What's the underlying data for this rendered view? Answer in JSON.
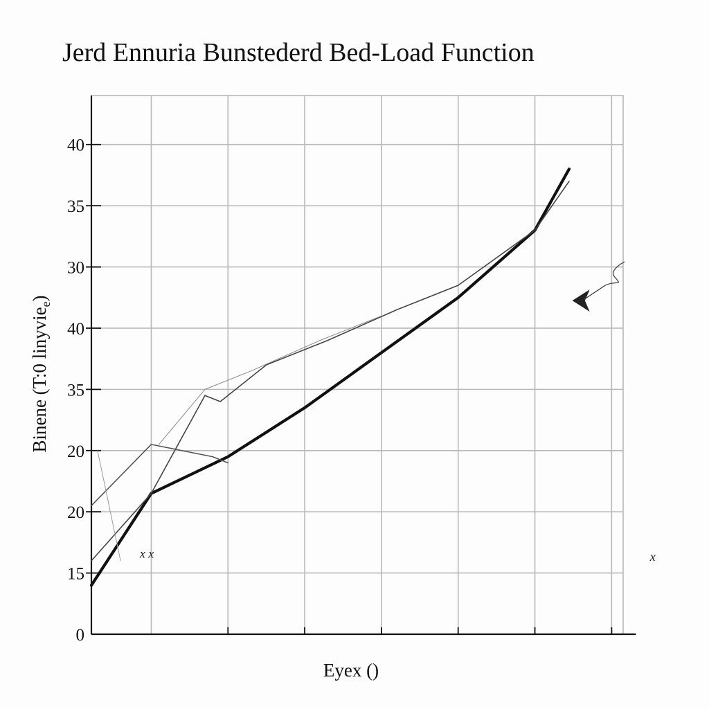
{
  "chart_data": {
    "type": "line",
    "title": "Jerd Ennuria Bunstederd Bed-Load Function",
    "xlabel": "Eyex ()",
    "ylabel": "Binene (T:0 linyvie",
    "ylabel_subscript": "e",
    "ylabel_close": ")",
    "y_tick_labels": [
      "0",
      "15",
      "20",
      "20",
      "35",
      "40",
      "30",
      "35",
      "40"
    ],
    "y_tick_positions": [
      0,
      1,
      2,
      3,
      4,
      5,
      6,
      7,
      8
    ],
    "x_ticks": [
      0,
      1,
      2,
      3,
      4,
      5,
      6
    ],
    "x_tick_labels": [
      "",
      "",
      "",
      "",
      "",
      "",
      ""
    ],
    "xlim": [
      -0.78,
      6.15
    ],
    "ylim": [
      0,
      8.8
    ],
    "grid": true,
    "legend": "none",
    "series": [
      {
        "style": "thick",
        "color": "#111111",
        "points": [
          [
            -0.9,
            0.8
          ],
          [
            0.0,
            2.3
          ],
          [
            1.0,
            2.9
          ],
          [
            2.0,
            3.7
          ],
          [
            3.0,
            4.6
          ],
          [
            4.0,
            5.5
          ],
          [
            5.0,
            6.6
          ],
          [
            5.9,
            7.6
          ]
        ]
      },
      {
        "style": "thin",
        "color": "#444444",
        "points": [
          [
            -0.9,
            1.2
          ],
          [
            0.0,
            2.3
          ],
          [
            0.7,
            3.9
          ],
          [
            0.9,
            3.8
          ],
          [
            1.5,
            4.4
          ],
          [
            2.3,
            4.8
          ],
          [
            3.2,
            5.3
          ],
          [
            4.0,
            5.7
          ],
          [
            5.0,
            6.6
          ],
          [
            5.8,
            7.4
          ]
        ]
      },
      {
        "style": "thin",
        "color": "#555555",
        "points": [
          [
            -0.9,
            2.1
          ],
          [
            0.0,
            3.1
          ],
          [
            0.8,
            2.9
          ],
          [
            1.0,
            2.8
          ]
        ]
      },
      {
        "style": "faint",
        "color": "#888888",
        "points": [
          [
            0.1,
            3.1
          ],
          [
            0.7,
            4.0
          ],
          [
            1.3,
            4.3
          ],
          [
            2.2,
            4.8
          ],
          [
            3.0,
            5.2
          ]
        ]
      },
      {
        "style": "faint",
        "color": "#999999",
        "points": [
          [
            -0.7,
            3.0
          ],
          [
            -0.4,
            1.2
          ]
        ]
      }
    ],
    "annotations": [
      {
        "text": "x x",
        "x": -0.15,
        "y": 1.25
      },
      {
        "text": "x",
        "x": 6.5,
        "y": 1.2
      }
    ],
    "arrow_marker": {
      "x": 6.6,
      "y": 5.45
    },
    "colors": {
      "background": "#fdfdfd",
      "grid": "#b8b8b8",
      "axis": "#111111"
    }
  }
}
